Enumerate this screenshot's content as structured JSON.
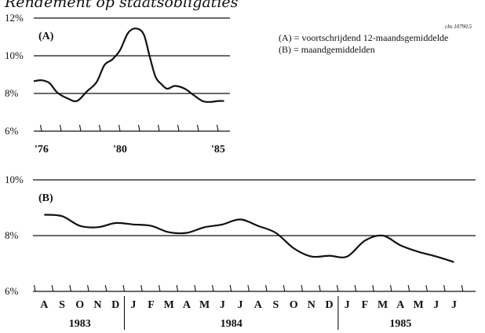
{
  "page": {
    "title": "Rendement op staatsobligaties",
    "source_code": "cbs 10790.5",
    "legend": [
      "(A) = voortschrijdend 12-maandsgemiddelde",
      "(B) = maandgemiddelden"
    ]
  },
  "chart_data": [
    {
      "id": "A",
      "type": "line",
      "panel_label": "(A)",
      "ylim": [
        6,
        12
      ],
      "yticks": [
        "6%",
        "8%",
        "10%",
        "12%"
      ],
      "gridlines": [
        8,
        10,
        12
      ],
      "xlim": [
        1975.6,
        1985.6
      ],
      "xtick_labels": [
        {
          "x": 1976,
          "label": "'76"
        },
        {
          "x": 1980,
          "label": "'80"
        },
        {
          "x": 1985,
          "label": "'85"
        }
      ],
      "x": [
        1975.6,
        1976.0,
        1976.4,
        1976.8,
        1977.3,
        1977.8,
        1978.3,
        1978.8,
        1979.2,
        1979.6,
        1980.0,
        1980.4,
        1980.8,
        1981.2,
        1981.5,
        1981.8,
        1982.1,
        1982.4,
        1982.8,
        1983.3,
        1983.7,
        1984.2,
        1984.6,
        1985.0,
        1985.3
      ],
      "y": [
        8.65,
        8.7,
        8.55,
        8.05,
        7.75,
        7.6,
        8.1,
        8.6,
        9.5,
        9.8,
        10.3,
        11.2,
        11.45,
        11.15,
        10.0,
        8.9,
        8.5,
        8.25,
        8.4,
        8.25,
        7.95,
        7.6,
        7.55,
        7.6,
        7.6
      ]
    },
    {
      "id": "B",
      "type": "line",
      "panel_label": "(B)",
      "ylim": [
        6,
        10
      ],
      "yticks": [
        "6%",
        "8%",
        "10%"
      ],
      "gridlines": [
        8,
        10
      ],
      "categories": [
        "A",
        "S",
        "O",
        "N",
        "D",
        "J",
        "F",
        "M",
        "A",
        "M",
        "J",
        "J",
        "A",
        "S",
        "O",
        "N",
        "D",
        "J",
        "F",
        "M",
        "A",
        "M",
        "J",
        "J"
      ],
      "year_labels": [
        {
          "label": "1983",
          "from": 0,
          "to": 4
        },
        {
          "label": "1984",
          "from": 5,
          "to": 16
        },
        {
          "label": "1985",
          "from": 17,
          "to": 23
        }
      ],
      "values": [
        8.75,
        8.7,
        8.35,
        8.3,
        8.45,
        8.4,
        8.35,
        8.12,
        8.1,
        8.3,
        8.4,
        8.58,
        8.35,
        8.1,
        7.55,
        7.25,
        7.28,
        7.25,
        7.82,
        8.0,
        7.65,
        7.42,
        7.25,
        7.05
      ]
    }
  ]
}
